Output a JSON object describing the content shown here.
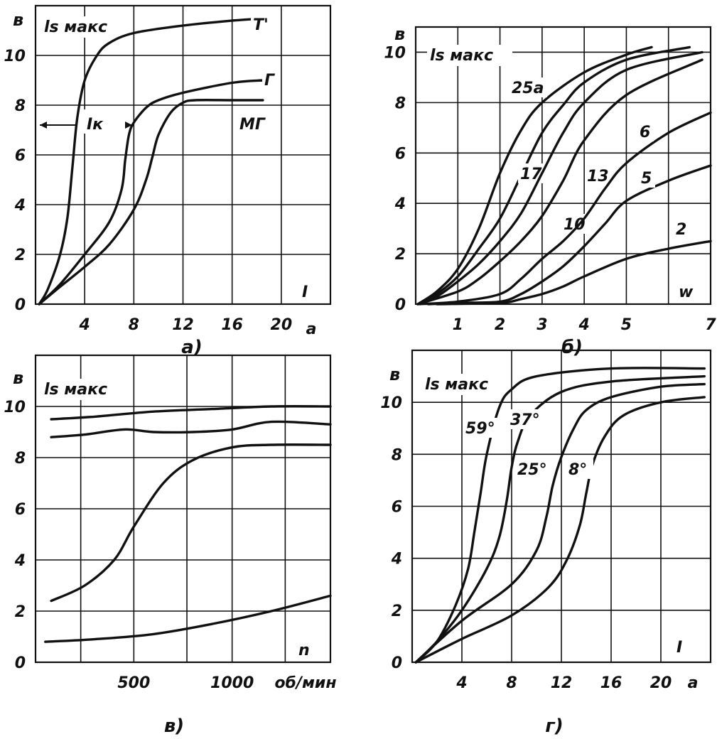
{
  "chart_data": [
    {
      "type": "line",
      "caption": "а)",
      "y_unit": "в",
      "ylabel": "ls макс",
      "xlabel": "I",
      "x_unit": "а",
      "xlim": [
        0,
        24
      ],
      "ylim": [
        0,
        12
      ],
      "x_ticks": [
        "4",
        "8",
        "12",
        "16",
        "20"
      ],
      "y_ticks": [
        "0",
        "2",
        "4",
        "6",
        "8",
        "10"
      ],
      "grid": true,
      "annotations": [
        {
          "text": "Iк"
        }
      ],
      "series": [
        {
          "name": "Т'",
          "x": [
            0.3,
            1,
            2,
            2.6,
            3,
            3.4,
            4,
            5,
            6,
            8,
            12,
            16,
            19
          ],
          "y": [
            0,
            0.6,
            2,
            3.5,
            5.5,
            7.5,
            9.0,
            10.0,
            10.5,
            10.9,
            11.2,
            11.4,
            11.5
          ]
        },
        {
          "name": "Г",
          "x": [
            0.3,
            2,
            4,
            6,
            7,
            7.3,
            7.6,
            8,
            9,
            10,
            12,
            16,
            18.5
          ],
          "y": [
            0,
            0.8,
            2.0,
            3.3,
            4.6,
            5.8,
            6.8,
            7.3,
            7.9,
            8.2,
            8.5,
            8.9,
            9.0
          ]
        },
        {
          "name": "МГ",
          "x": [
            0.3,
            2,
            4,
            6,
            8,
            9,
            9.5,
            10,
            11,
            12,
            13,
            16,
            18.5
          ],
          "y": [
            0,
            0.7,
            1.5,
            2.4,
            3.8,
            5.0,
            5.9,
            6.8,
            7.7,
            8.1,
            8.2,
            8.2,
            8.2
          ]
        }
      ]
    },
    {
      "type": "line",
      "caption": "б)",
      "y_unit": "в",
      "ylabel": "ls макс",
      "xlabel": "w",
      "xlim": [
        0,
        7
      ],
      "ylim": [
        0,
        11
      ],
      "x_ticks": [
        "1",
        "2",
        "3",
        "4",
        "5",
        "7"
      ],
      "y_ticks": [
        "0",
        "2",
        "4",
        "6",
        "8",
        "10"
      ],
      "grid": true,
      "series": [
        {
          "name": "25а",
          "x": [
            0.05,
            0.5,
            1,
            1.5,
            2,
            2.5,
            3,
            4,
            5,
            5.6
          ],
          "y": [
            0,
            0.5,
            1.4,
            3.0,
            5.2,
            6.9,
            8.0,
            9.2,
            9.9,
            10.2
          ]
        },
        {
          "name": "17",
          "x": [
            0.05,
            0.5,
            1,
            1.5,
            2,
            2.5,
            3,
            3.5,
            4,
            5,
            6.5
          ],
          "y": [
            0,
            0.4,
            1.1,
            2.2,
            3.4,
            5.1,
            6.8,
            7.9,
            8.8,
            9.7,
            10.2
          ]
        },
        {
          "name": "13",
          "x": [
            0.05,
            0.5,
            1,
            1.5,
            2,
            2.5,
            3,
            3.5,
            4,
            5,
            6.8
          ],
          "y": [
            0,
            0.3,
            0.9,
            1.6,
            2.5,
            3.6,
            5.2,
            6.8,
            8.0,
            9.3,
            10.0
          ]
        },
        {
          "name": "10",
          "x": [
            0.05,
            1,
            1.5,
            2,
            2.5,
            3,
            3.5,
            4,
            5,
            6.8
          ],
          "y": [
            0,
            0.5,
            1.0,
            1.7,
            2.5,
            3.5,
            4.9,
            6.5,
            8.3,
            9.7
          ]
        },
        {
          "name": "6",
          "x": [
            0.1,
            1,
            2,
            2.5,
            3,
            3.5,
            4,
            4.5,
            5,
            6,
            7
          ],
          "y": [
            0,
            0.1,
            0.4,
            1.0,
            1.8,
            2.5,
            3.4,
            4.6,
            5.6,
            6.8,
            7.6
          ]
        },
        {
          "name": "5",
          "x": [
            0.3,
            1,
            2,
            2.5,
            3,
            3.5,
            4,
            4.5,
            5,
            6,
            7
          ],
          "y": [
            0,
            0.05,
            0.1,
            0.4,
            0.9,
            1.5,
            2.3,
            3.2,
            4.1,
            4.9,
            5.5
          ]
        },
        {
          "name": "2",
          "x": [
            0.5,
            2,
            2.5,
            3,
            3.5,
            4,
            5,
            6,
            7
          ],
          "y": [
            0,
            0.05,
            0.2,
            0.4,
            0.7,
            1.1,
            1.8,
            2.2,
            2.5
          ]
        }
      ]
    },
    {
      "type": "line",
      "caption": "в)",
      "y_unit": "в",
      "ylabel": "ls макс",
      "xlabel": "n",
      "x_unit": "об/мин",
      "xlim": [
        0,
        1500
      ],
      "ylim": [
        0,
        12
      ],
      "x_ticks": [
        "500",
        "1000"
      ],
      "y_ticks": [
        "0",
        "2",
        "4",
        "6",
        "8",
        "10"
      ],
      "grid": true,
      "series": [
        {
          "x": [
            80,
            300,
            600,
            900,
            1200,
            1500
          ],
          "y": [
            9.5,
            9.6,
            9.8,
            9.9,
            10.0,
            10.0
          ]
        },
        {
          "x": [
            80,
            250,
            450,
            600,
            800,
            1000,
            1200,
            1500
          ],
          "y": [
            8.8,
            8.9,
            9.1,
            9.0,
            9.0,
            9.1,
            9.4,
            9.3
          ]
        },
        {
          "x": [
            80,
            250,
            400,
            500,
            650,
            800,
            1000,
            1200,
            1500
          ],
          "y": [
            2.4,
            3.0,
            4.0,
            5.3,
            7.0,
            7.9,
            8.4,
            8.5,
            8.5
          ]
        },
        {
          "x": [
            50,
            300,
            600,
            900,
            1200,
            1500
          ],
          "y": [
            0.8,
            0.9,
            1.1,
            1.5,
            2.0,
            2.6
          ]
        }
      ]
    },
    {
      "type": "line",
      "caption": "г)",
      "y_unit": "в",
      "ylabel": "ls макс",
      "xlabel": "I",
      "x_unit": "а",
      "xlim": [
        0,
        24
      ],
      "ylim": [
        0,
        12
      ],
      "x_ticks": [
        "4",
        "8",
        "12",
        "16",
        "20"
      ],
      "y_ticks": [
        "0",
        "2",
        "4",
        "6",
        "8",
        "10"
      ],
      "grid": true,
      "series": [
        {
          "name": "59°",
          "x": [
            0.3,
            2,
            3.5,
            4.5,
            5,
            5.5,
            6,
            7,
            8,
            10,
            16,
            23.5
          ],
          "y": [
            0,
            0.8,
            2.2,
            3.6,
            5.0,
            6.5,
            8.0,
            9.8,
            10.5,
            11.0,
            11.3,
            11.3
          ]
        },
        {
          "name": "37°",
          "x": [
            0.3,
            2,
            4,
            6,
            7,
            7.6,
            8,
            8.5,
            9.5,
            12,
            16,
            23.5
          ],
          "y": [
            0,
            0.8,
            2.0,
            3.6,
            4.8,
            6.2,
            7.5,
            8.5,
            9.5,
            10.4,
            10.8,
            11.0
          ]
        },
        {
          "name": "25°",
          "x": [
            0.3,
            4,
            8,
            10,
            10.8,
            11.3,
            12,
            13,
            14,
            16,
            20,
            23.5
          ],
          "y": [
            0,
            1.6,
            3.0,
            4.3,
            5.6,
            6.8,
            7.9,
            9.0,
            9.7,
            10.2,
            10.6,
            10.7
          ]
        },
        {
          "name": "8°",
          "x": [
            0.3,
            4,
            8,
            11,
            12.5,
            13.5,
            14,
            14.5,
            15.5,
            17,
            20,
            23.5
          ],
          "y": [
            0,
            0.9,
            1.8,
            2.9,
            4.0,
            5.3,
            6.5,
            7.6,
            8.7,
            9.5,
            10.0,
            10.2
          ]
        }
      ]
    }
  ]
}
